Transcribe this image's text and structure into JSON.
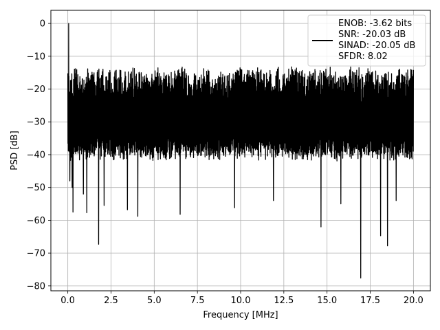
{
  "chart_data": {
    "type": "line",
    "title": "",
    "xlabel": "Frequency [MHz]",
    "ylabel": "PSD [dB]",
    "xlim": [
      -0.98,
      20.98
    ],
    "ylim": [
      -81.5,
      4
    ],
    "xticks": [
      0.0,
      2.5,
      5.0,
      7.5,
      10.0,
      12.5,
      15.0,
      17.5,
      20.0
    ],
    "xtick_labels": [
      "0.0",
      "2.5",
      "5.0",
      "7.5",
      "10.0",
      "12.5",
      "15.0",
      "17.5",
      "20.0"
    ],
    "yticks": [
      0,
      -10,
      -20,
      -30,
      -40,
      -50,
      -60,
      -70,
      -80
    ],
    "ytick_labels": [
      "0",
      "−10",
      "−20",
      "−30",
      "−40",
      "−50",
      "−60",
      "−70",
      "−80"
    ],
    "grid": true,
    "legend_position": "top-right",
    "legend_lines": [
      "ENOB: -3.62 bits",
      "SNR: -20.03 dB",
      "SINAD: -20.05 dB",
      "SFDR: 8.02"
    ],
    "series": [
      {
        "color": "#000000",
        "noise_floor": {
          "x_range": [
            0,
            20
          ],
          "y_top_range": [
            -22,
            -13
          ],
          "y_bottom_range": [
            -42,
            -36
          ],
          "mean": -29
        },
        "peaks": [
          {
            "x": 0.05,
            "y": 0
          },
          {
            "x": 0.12,
            "y": -48
          },
          {
            "x": 0.25,
            "y": -50
          },
          {
            "x": 0.3,
            "y": -57.5
          },
          {
            "x": 0.9,
            "y": -52
          },
          {
            "x": 1.1,
            "y": -57.7
          },
          {
            "x": 1.78,
            "y": -67.3
          },
          {
            "x": 2.1,
            "y": -55.5
          },
          {
            "x": 3.45,
            "y": -56.8
          },
          {
            "x": 4.05,
            "y": -58.8
          },
          {
            "x": 6.5,
            "y": -58.2
          },
          {
            "x": 9.65,
            "y": -56.2
          },
          {
            "x": 11.9,
            "y": -54
          },
          {
            "x": 14.65,
            "y": -62
          },
          {
            "x": 15.8,
            "y": -55
          },
          {
            "x": 16.95,
            "y": -77.6
          },
          {
            "x": 18.1,
            "y": -64.7
          },
          {
            "x": 18.5,
            "y": -67.8
          },
          {
            "x": 19.0,
            "y": -54
          }
        ]
      }
    ]
  }
}
